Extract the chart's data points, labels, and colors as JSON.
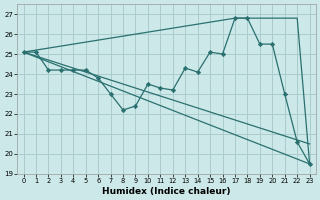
{
  "xlabel": "Humidex (Indice chaleur)",
  "bg_color": "#cce8e8",
  "line_color": "#2a7070",
  "grid_color": "#aacccc",
  "xlim": [
    -0.5,
    23.5
  ],
  "ylim": [
    19,
    27.5
  ],
  "yticks": [
    19,
    20,
    21,
    22,
    23,
    24,
    25,
    26,
    27
  ],
  "xticks": [
    0,
    1,
    2,
    3,
    4,
    5,
    6,
    7,
    8,
    9,
    10,
    11,
    12,
    13,
    14,
    15,
    16,
    17,
    18,
    19,
    20,
    21,
    22,
    23
  ],
  "series_main": {
    "x": [
      0,
      1,
      2,
      3,
      4,
      5,
      6,
      7,
      8,
      9,
      10,
      11,
      12,
      13,
      14,
      15,
      16,
      17,
      18,
      19,
      20,
      21,
      22,
      23
    ],
    "y": [
      25.1,
      25.1,
      24.2,
      24.2,
      24.2,
      24.2,
      23.8,
      23.0,
      22.2,
      22.4,
      23.5,
      23.3,
      23.2,
      24.3,
      24.1,
      25.1,
      25.0,
      26.8,
      26.8,
      25.5,
      25.5,
      23.0,
      20.6,
      19.5
    ]
  },
  "series_straight": [
    {
      "x": [
        0,
        23
      ],
      "y": [
        25.1,
        19.5
      ]
    },
    {
      "x": [
        0,
        23
      ],
      "y": [
        25.1,
        20.5
      ]
    },
    {
      "x": [
        0,
        17,
        19,
        22,
        23
      ],
      "y": [
        25.1,
        26.8,
        26.8,
        26.8,
        19.5
      ]
    }
  ]
}
